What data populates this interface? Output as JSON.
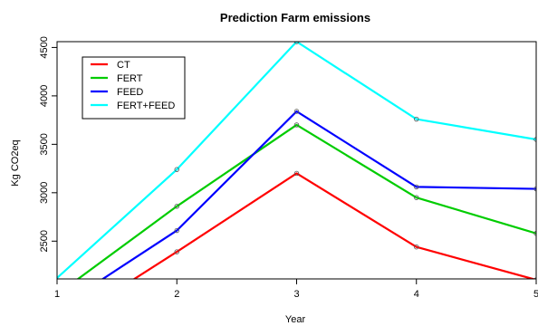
{
  "chart_data": {
    "type": "line",
    "title": "Prediction Farm emissions",
    "xlabel": "Year",
    "ylabel": "Kg CO2eq",
    "x": [
      1,
      2,
      3,
      4,
      5
    ],
    "xticks": [
      "1",
      "2",
      "3",
      "4",
      "5"
    ],
    "yticks": [
      "2500",
      "3000",
      "3500",
      "4000",
      "4500"
    ],
    "xlim": [
      1,
      5
    ],
    "ylim": [
      2110,
      4560
    ],
    "legend_position": "top-left",
    "grid": false,
    "series": [
      {
        "name": "CT",
        "color": "#ff0000",
        "values": [
          1600,
          2390,
          3200,
          2440,
          2100
        ]
      },
      {
        "name": "FERT",
        "color": "#00cc00",
        "values": [
          1950,
          2860,
          3700,
          2950,
          2580
        ]
      },
      {
        "name": "FEED",
        "color": "#0000ff",
        "values": [
          1800,
          2610,
          3840,
          3060,
          3040
        ]
      },
      {
        "name": "FERT+FEED",
        "color": "#00ffff",
        "values": [
          2120,
          3240,
          4560,
          3760,
          3550
        ]
      }
    ]
  }
}
